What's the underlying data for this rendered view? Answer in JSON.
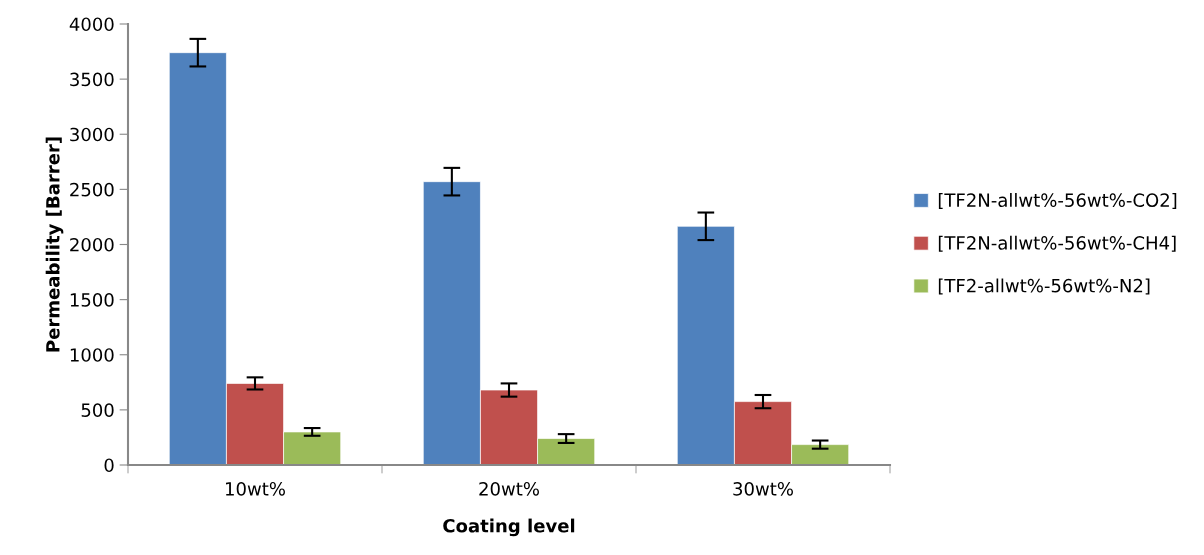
{
  "chart_data": {
    "type": "bar",
    "xlabel": "Coating level",
    "ylabel": "Permeability [Barrer]",
    "categories": [
      "10wt%",
      "20wt%",
      "30wt%"
    ],
    "series": [
      {
        "name": "[TF2N-allwt%-56wt%-CO2]",
        "color": "#4f81bd",
        "values": [
          3740,
          2570,
          2165
        ],
        "errors": [
          125,
          125,
          125
        ]
      },
      {
        "name": "[TF2N-allwt%-56wt%-CH4]",
        "color": "#c0504d",
        "values": [
          740,
          680,
          575
        ],
        "errors": [
          55,
          60,
          60
        ]
      },
      {
        "name": "[TF2-allwt%-56wt%-N2]",
        "color": "#9bbb59",
        "values": [
          300,
          240,
          185
        ],
        "errors": [
          35,
          40,
          37
        ]
      }
    ],
    "ylim": [
      0,
      4000
    ],
    "yticks": [
      0,
      500,
      1000,
      1500,
      2000,
      2500,
      3000,
      3500,
      4000
    ],
    "grid": false,
    "legend": "right"
  }
}
